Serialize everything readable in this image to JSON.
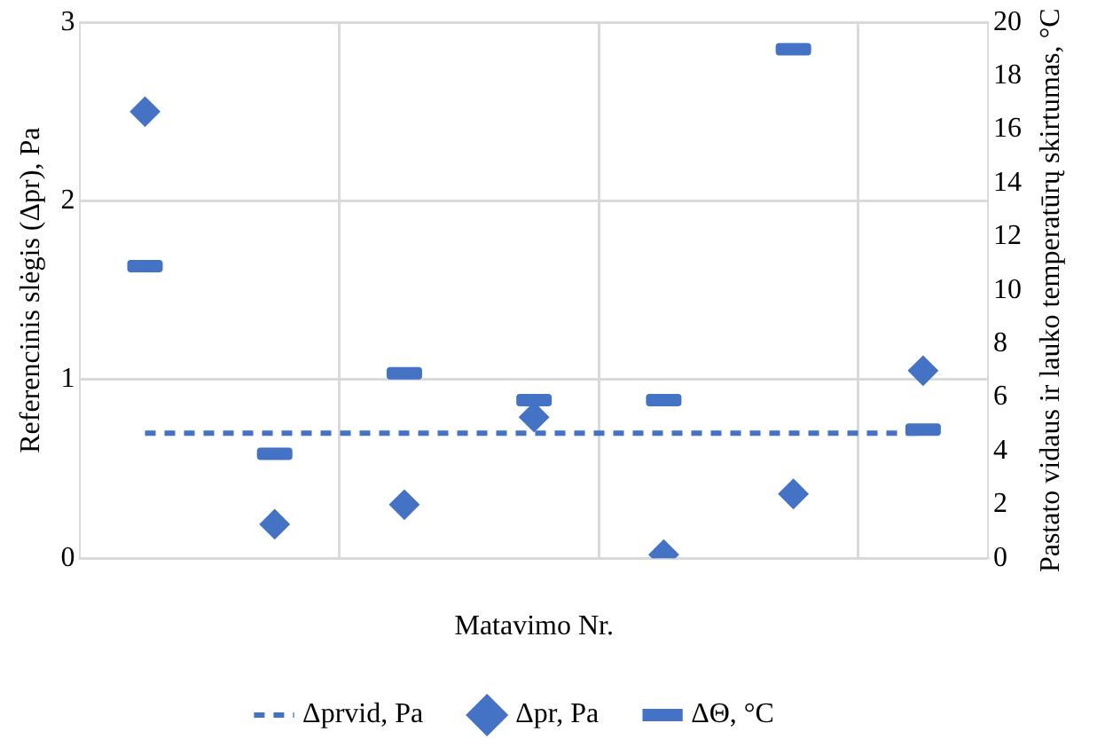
{
  "chart_data": {
    "type": "scatter",
    "xlabel": "Matavimo Nr.",
    "ylabel": "Referencinis slėgis (Δpr), Pa",
    "y2label": "Pastato vidaus ir lauko temperatūrų skirtumas, °C",
    "categories": [
      null,
      null,
      null,
      null,
      null,
      null,
      null
    ],
    "ylim": [
      0,
      3
    ],
    "yticks": [
      0,
      1,
      2,
      3
    ],
    "y2lim": [
      0,
      20
    ],
    "y2ticks": [
      0,
      2,
      4,
      6,
      8,
      10,
      12,
      14,
      16,
      18,
      20
    ],
    "grid": true,
    "legend": "bottom",
    "series": [
      {
        "name": "Δprvid, Pa",
        "type": "line",
        "line_style": "dashed",
        "marker": "none",
        "color": "#4472c4",
        "values": [
          0.7,
          0.7,
          0.7,
          0.7,
          0.7,
          0.7,
          0.7
        ]
      },
      {
        "name": "Δpr, Pa",
        "type": "scatter",
        "marker": "diamond",
        "color": "#4472c4",
        "values": [
          2.5,
          0.19,
          0.3,
          0.79,
          0.02,
          0.36,
          1.05
        ]
      },
      {
        "name": "ΔΘ, °C",
        "type": "scatter",
        "axis": "y2",
        "color": "#4472c4",
        "values": [
          10.9,
          3.9,
          6.9,
          5.9,
          5.9,
          19,
          4.8
        ]
      }
    ]
  }
}
